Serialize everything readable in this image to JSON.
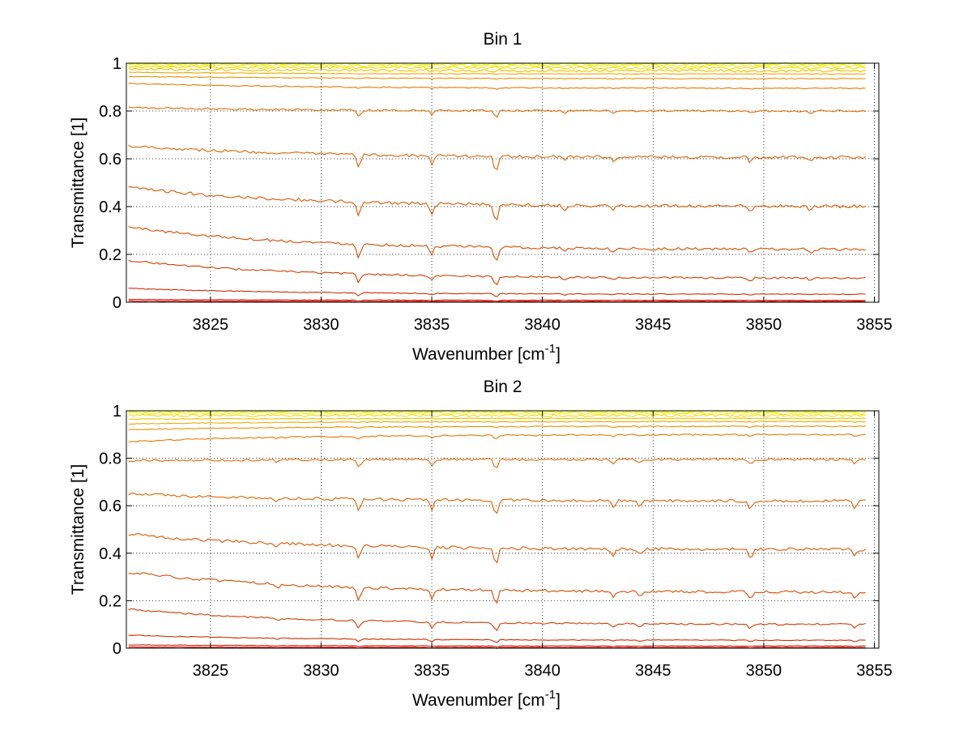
{
  "chart_data": [
    {
      "type": "line",
      "title": "Bin 1",
      "xlabel": "Wavenumber [cm",
      "xlabel_sup": "-1",
      "xlabel_end": "]",
      "ylabel": "Transmittance [1]",
      "xlim": [
        3821.2,
        3855.2
      ],
      "ylim": [
        0,
        1
      ],
      "x_ticks": [
        3825,
        3830,
        3835,
        3840,
        3845,
        3850,
        3855
      ],
      "y_ticks": [
        0,
        0.2,
        0.4,
        0.6,
        0.8,
        1
      ],
      "y_tick_labels": [
        "0",
        "0.2",
        "0.4",
        "0.6",
        "0.8",
        "1"
      ],
      "grid": true,
      "x_range": [
        3821.3,
        3854.6
      ],
      "absorption_lines": [
        {
          "x": 3831.7,
          "depth": 1.0
        },
        {
          "x": 3835.0,
          "depth": 0.6
        },
        {
          "x": 3837.9,
          "depth": 1.1
        },
        {
          "x": 3841.0,
          "depth": 0.35
        },
        {
          "x": 3843.2,
          "depth": 0.3
        },
        {
          "x": 3849.4,
          "depth": 0.35
        },
        {
          "x": 3852.1,
          "depth": 0.3
        }
      ],
      "series": [
        {
          "start": 0.005,
          "end": 0.003,
          "color": "#e00000"
        },
        {
          "start": 0.012,
          "end": 0.008,
          "color": "#d81800"
        },
        {
          "start": 0.058,
          "end": 0.033,
          "color": "#d42c00"
        },
        {
          "start": 0.175,
          "end": 0.1,
          "color": "#d43c00"
        },
        {
          "start": 0.315,
          "end": 0.22,
          "color": "#d84a00"
        },
        {
          "start": 0.48,
          "end": 0.4,
          "color": "#dc5600"
        },
        {
          "start": 0.655,
          "end": 0.605,
          "color": "#e06000"
        },
        {
          "start": 0.815,
          "end": 0.8,
          "color": "#e46a00"
        },
        {
          "start": 0.915,
          "end": 0.895,
          "color": "#e87800"
        },
        {
          "start": 0.945,
          "end": 0.935,
          "color": "#ec9000"
        },
        {
          "start": 0.962,
          "end": 0.955,
          "color": "#f0a800"
        },
        {
          "start": 0.975,
          "end": 0.968,
          "color": "#f4c000"
        },
        {
          "start": 0.985,
          "end": 0.98,
          "color": "#f6d800"
        },
        {
          "start": 0.993,
          "end": 0.99,
          "color": "#f4ec00"
        },
        {
          "start": 0.998,
          "end": 0.997,
          "color": "#e4f400"
        }
      ]
    },
    {
      "type": "line",
      "title": "Bin 2",
      "xlabel": "Wavenumber [cm",
      "xlabel_sup": "-1",
      "xlabel_end": "]",
      "ylabel": "Transmittance [1]",
      "xlim": [
        3821.2,
        3855.2
      ],
      "ylim": [
        0,
        1
      ],
      "x_ticks": [
        3825,
        3830,
        3835,
        3840,
        3845,
        3850,
        3855
      ],
      "y_ticks": [
        0,
        0.2,
        0.4,
        0.6,
        0.8,
        1
      ],
      "y_tick_labels": [
        "0",
        "0.2",
        "0.4",
        "0.6",
        "0.8",
        "1"
      ],
      "grid": true,
      "x_range": [
        3821.3,
        3854.6
      ],
      "absorption_lines": [
        {
          "x": 3828.0,
          "depth": 0.3
        },
        {
          "x": 3831.7,
          "depth": 0.9
        },
        {
          "x": 3835.0,
          "depth": 0.7
        },
        {
          "x": 3837.9,
          "depth": 1.1
        },
        {
          "x": 3843.2,
          "depth": 0.5
        },
        {
          "x": 3844.4,
          "depth": 0.4
        },
        {
          "x": 3849.4,
          "depth": 0.6
        },
        {
          "x": 3854.1,
          "depth": 0.5
        }
      ],
      "series": [
        {
          "start": 0.005,
          "end": 0.003,
          "color": "#e00000"
        },
        {
          "start": 0.014,
          "end": 0.009,
          "color": "#d81800"
        },
        {
          "start": 0.055,
          "end": 0.033,
          "color": "#d42c00"
        },
        {
          "start": 0.165,
          "end": 0.1,
          "color": "#d43c00"
        },
        {
          "start": 0.32,
          "end": 0.235,
          "color": "#d84a00"
        },
        {
          "start": 0.48,
          "end": 0.415,
          "color": "#dc5600"
        },
        {
          "start": 0.65,
          "end": 0.62,
          "color": "#e06000"
        },
        {
          "start": 0.79,
          "end": 0.795,
          "color": "#e46a00"
        },
        {
          "start": 0.87,
          "end": 0.9,
          "color": "#e87800"
        },
        {
          "start": 0.92,
          "end": 0.935,
          "color": "#ec9000"
        },
        {
          "start": 0.945,
          "end": 0.955,
          "color": "#f0a800"
        },
        {
          "start": 0.965,
          "end": 0.968,
          "color": "#f4c000"
        },
        {
          "start": 0.98,
          "end": 0.98,
          "color": "#f6d800"
        },
        {
          "start": 0.99,
          "end": 0.99,
          "color": "#f4ec00"
        },
        {
          "start": 0.998,
          "end": 0.997,
          "color": "#e4f400"
        }
      ]
    }
  ]
}
